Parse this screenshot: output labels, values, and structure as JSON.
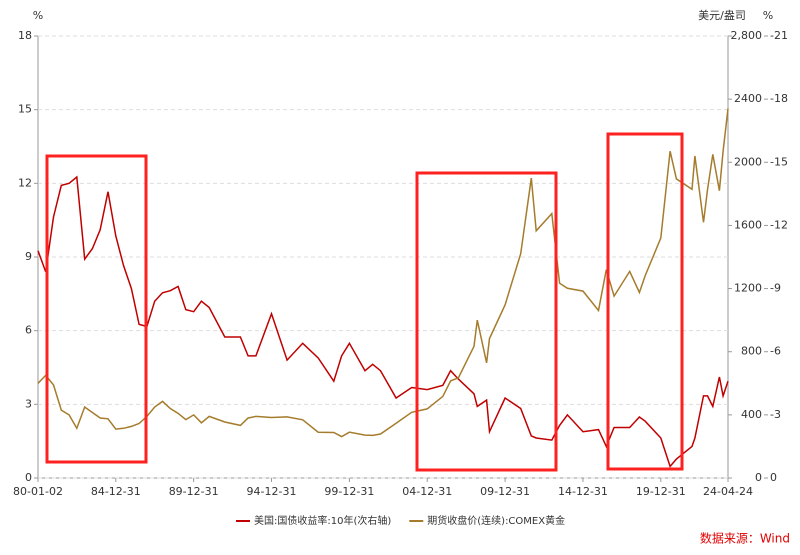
{
  "chart_data": {
    "type": "line",
    "left_unit": "%",
    "right_unit": "美元/盎司",
    "right2_unit": "%",
    "source": "数据来源：Wind",
    "grid": true,
    "x": [
      "80-01-02",
      "80-06-30",
      "80-12-31",
      "81-06-30",
      "81-12-31",
      "82-06-30",
      "82-12-31",
      "83-06-30",
      "83-12-31",
      "84-06-30",
      "84-12-31",
      "85-06-30",
      "85-12-31",
      "86-06-30",
      "86-12-31",
      "87-06-30",
      "87-12-31",
      "88-06-30",
      "88-12-31",
      "89-06-30",
      "89-12-31",
      "90-06-30",
      "90-12-31",
      "91-12-31",
      "92-12-31",
      "93-06-30",
      "93-12-31",
      "94-12-31",
      "95-12-31",
      "96-12-31",
      "97-12-31",
      "98-12-31",
      "99-06-30",
      "99-12-31",
      "00-12-31",
      "01-06-30",
      "01-12-31",
      "02-12-31",
      "03-12-31",
      "04-12-31",
      "05-12-31",
      "06-06-30",
      "06-12-31",
      "07-12-31",
      "08-03-17",
      "08-10-24",
      "08-12-31",
      "09-12-31",
      "10-12-31",
      "11-09-06",
      "11-12-31",
      "12-12-31",
      "13-06-30",
      "13-12-31",
      "14-12-31",
      "15-12-31",
      "16-06-30",
      "16-12-31",
      "17-12-31",
      "18-08-16",
      "18-12-31",
      "19-12-31",
      "20-08-06",
      "20-12-31",
      "21-12-31",
      "22-03-08",
      "22-09-28",
      "22-12-31",
      "23-05-03",
      "23-10-05",
      "23-12-31",
      "24-04-24"
    ],
    "xlim": [
      "80-01-02",
      "24-04-24"
    ],
    "xticks": [
      "80-01-02",
      "84-12-31",
      "89-12-31",
      "94-12-31",
      "99-12-31",
      "04-12-31",
      "09-12-31",
      "14-12-31",
      "19-12-31",
      "24-04-24"
    ],
    "ylim": [
      0,
      18
    ],
    "yticks": [
      0,
      3,
      6,
      9,
      12,
      15,
      18
    ],
    "y2lim": [
      0,
      2800
    ],
    "y2ticks": [
      0,
      400,
      800,
      1200,
      1600,
      2000,
      2400,
      {
        "value": 2800,
        "label": "2,800"
      }
    ],
    "y3lim": [
      0,
      21
    ],
    "y3ticks": [
      {
        "value": 0,
        "label": "0"
      },
      {
        "value": 3,
        "label": "-3"
      },
      {
        "value": 6,
        "label": "-6"
      },
      {
        "value": 9,
        "label": "-9"
      },
      {
        "value": 12,
        "label": "-12"
      },
      {
        "value": 15,
        "label": "-15"
      },
      {
        "value": 18,
        "label": "-18"
      },
      {
        "value": 21,
        "label": "-21"
      }
    ],
    "series": [
      {
        "name": "美国:国债收益率:10年(次右轴)",
        "color": "#c00000",
        "axis": "y3",
        "values": [
          10.8,
          9.8,
          12.4,
          13.9,
          14.0,
          14.3,
          10.4,
          10.9,
          11.8,
          13.6,
          11.5,
          10.1,
          9.0,
          7.3,
          7.2,
          8.4,
          8.8,
          8.9,
          9.1,
          8.0,
          7.9,
          8.4,
          8.1,
          6.7,
          6.7,
          5.8,
          5.8,
          7.8,
          5.6,
          6.4,
          5.7,
          4.6,
          5.8,
          6.4,
          5.1,
          5.4,
          5.1,
          3.8,
          4.3,
          4.2,
          4.4,
          5.1,
          4.7,
          4.0,
          3.4,
          3.7,
          2.2,
          3.8,
          3.3,
          2.0,
          1.9,
          1.8,
          2.5,
          3.0,
          2.2,
          2.3,
          1.5,
          2.4,
          2.4,
          2.9,
          2.7,
          1.9,
          0.55,
          0.9,
          1.5,
          1.9,
          3.9,
          3.9,
          3.4,
          4.8,
          3.9,
          4.6
        ]
      },
      {
        "name": "期货收盘价(连续):COMEX黄金",
        "color": "#a57c2c",
        "axis": "y2",
        "values": [
          600,
          650,
          590,
          430,
          400,
          315,
          450,
          415,
          380,
          375,
          310,
          315,
          327,
          345,
          390,
          450,
          485,
          440,
          410,
          370,
          400,
          350,
          390,
          355,
          333,
          380,
          390,
          383,
          387,
          369,
          290,
          288,
          262,
          290,
          272,
          270,
          279,
          347,
          416,
          438,
          517,
          615,
          635,
          834,
          1000,
          730,
          884,
          1097,
          1421,
          1900,
          1566,
          1675,
          1234,
          1202,
          1184,
          1061,
          1320,
          1152,
          1309,
          1175,
          1282,
          1520,
          2070,
          1895,
          1829,
          2040,
          1620,
          1826,
          2050,
          1820,
          2070,
          2340
        ]
      }
    ]
  }
}
